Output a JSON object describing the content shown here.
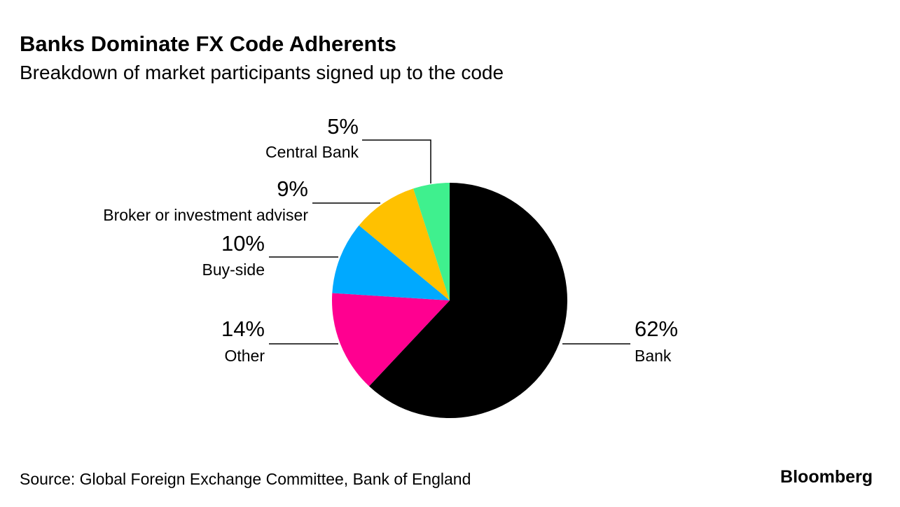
{
  "chart_data": {
    "type": "pie",
    "title": "Banks Dominate FX Code Adherents",
    "subtitle": "Breakdown of market participants signed up to the code",
    "categories": [
      "Bank",
      "Other",
      "Buy-side",
      "Broker or investment adviser",
      "Central Bank"
    ],
    "values": [
      62,
      14,
      10,
      9,
      5
    ],
    "value_labels": [
      "62%",
      "14%",
      "10%",
      "9%",
      "5%"
    ],
    "colors": [
      "#000000",
      "#ff0090",
      "#00a9ff",
      "#ffc100",
      "#3ff08e"
    ],
    "source": "Source: Global Foreign Exchange Committee, Bank of England",
    "brand": "Bloomberg"
  }
}
